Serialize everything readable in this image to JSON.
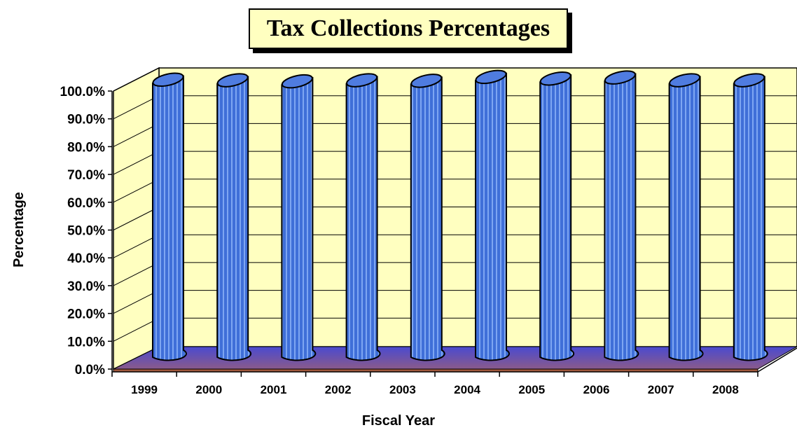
{
  "chart_data": {
    "type": "bar",
    "title": "Tax Collections Percentages",
    "xlabel": "Fiscal Year",
    "ylabel": "Percentage",
    "categories": [
      "1999",
      "2000",
      "2001",
      "2002",
      "2003",
      "2004",
      "2005",
      "2006",
      "2007",
      "2008"
    ],
    "series": [
      {
        "values": [
          99.8,
          99.6,
          99.2,
          99.6,
          99.4,
          100.8,
          100.2,
          100.6,
          99.6,
          99.6
        ]
      }
    ],
    "ylim": [
      0,
      100
    ],
    "yticks": [
      "0.0%",
      "10.0%",
      "20.0%",
      "30.0%",
      "40.0%",
      "50.0%",
      "60.0%",
      "70.0%",
      "80.0%",
      "90.0%",
      "100.0%"
    ],
    "grid": true,
    "legend": "none",
    "colors": {
      "bar": "#3f6fd8",
      "wall": "#ffffc0",
      "floor_top": "#5252b8",
      "floor_front": "#a0583c"
    }
  }
}
